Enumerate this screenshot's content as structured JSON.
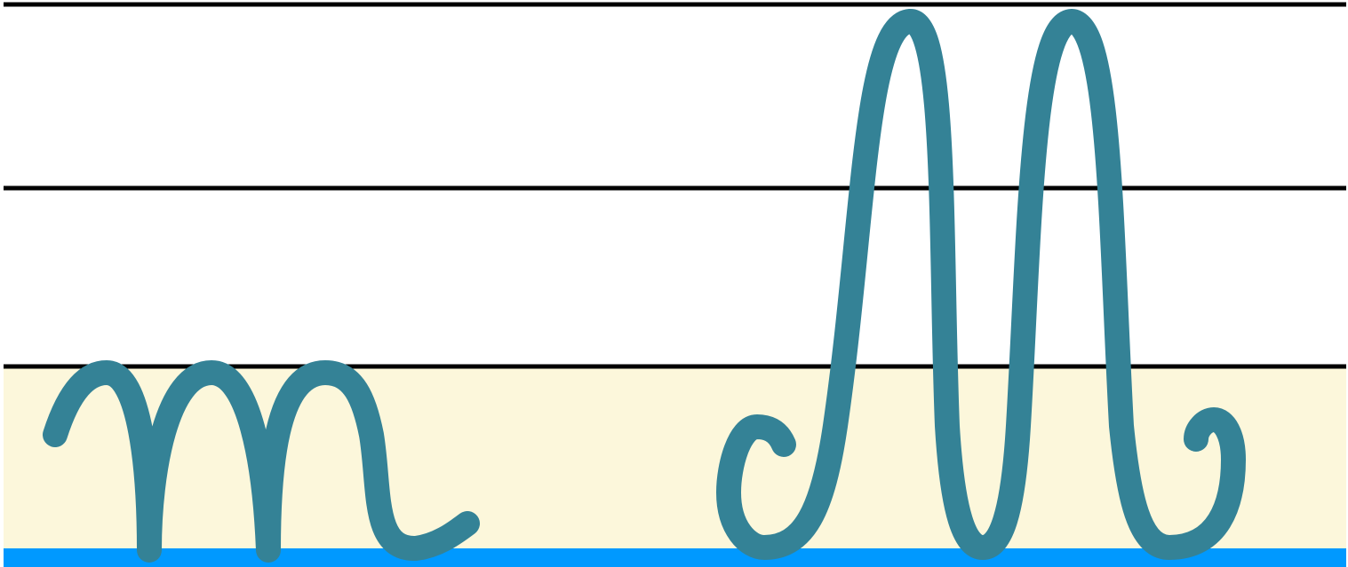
{
  "colors": {
    "background": "#ffffff",
    "guide_line": "#000000",
    "x_height_band": "#fcf7db",
    "baseline": "#0099ff",
    "letter_stroke": "#348296"
  },
  "letters": [
    {
      "glyph": "m",
      "case": "lowercase",
      "style": "cursive"
    },
    {
      "glyph": "M",
      "case": "uppercase",
      "style": "cursive"
    }
  ]
}
